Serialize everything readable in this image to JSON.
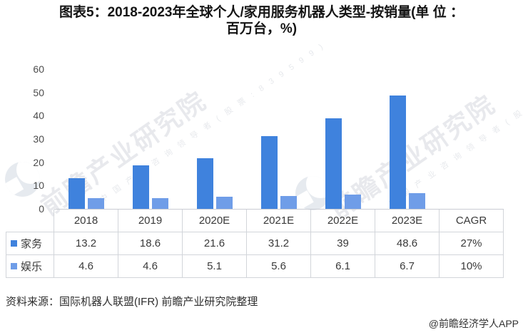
{
  "title": {
    "line1": "图表5：2018-2023年全球个人/家用服务机器人类型-按销量(单 位 ：",
    "line2": "百万台，%)"
  },
  "chart_data": {
    "type": "bar",
    "categories": [
      "2018",
      "2019",
      "2020E",
      "2021E",
      "2022E",
      "2023E"
    ],
    "series": [
      {
        "name": "家务",
        "color": "#3f82dd",
        "values": [
          13.2,
          18.6,
          21.6,
          31.2,
          39,
          48.6
        ],
        "cagr": "27%"
      },
      {
        "name": "娱乐",
        "color": "#6f9de8",
        "values": [
          4.6,
          4.6,
          5.1,
          5.6,
          6.1,
          6.7
        ],
        "cagr": "10%"
      }
    ],
    "ylim": [
      0,
      60
    ],
    "yticks": [
      0,
      10,
      20,
      30,
      40,
      50,
      60
    ],
    "extra_column_header": "CAGR",
    "grid": false,
    "legend_position": "table-left"
  },
  "source": "资料来源：国际机器人联盟(IFR)  前瞻产业研究院整理",
  "credit": "@前瞻经济学人APP",
  "watermark": {
    "text_large": "前瞻产业研究院",
    "text_small": "中 国 产 业 咨 询 领 导 者 ( 股 票 : 8 3 9 5 9 9 )"
  },
  "colors": {
    "bar_dark": "#3f82dd",
    "bar_light": "#6f9de8",
    "table_border": "#d2d5da",
    "axis_text": "#4c4c4c"
  }
}
